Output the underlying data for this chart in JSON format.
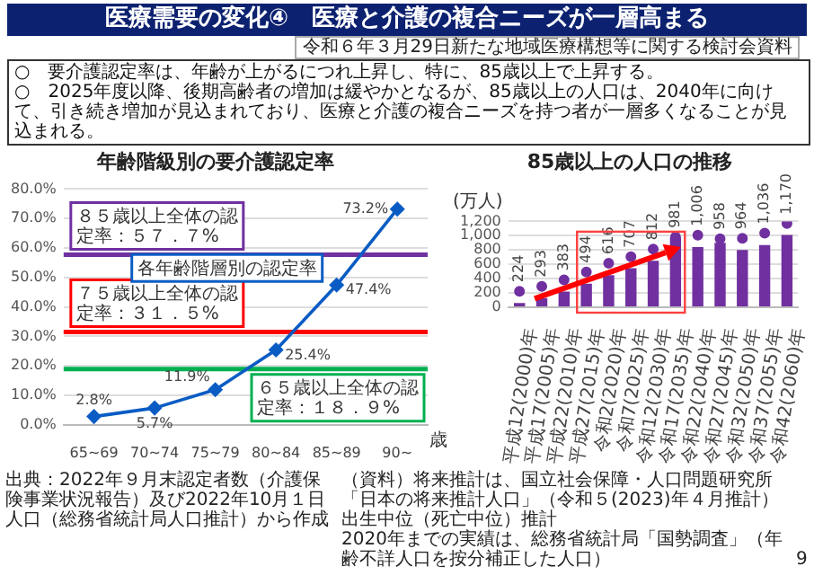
{
  "chart_data": [
    {
      "type": "other",
      "title": "医療需要の変化④　医療と介護の複合ニーズが一層高まる",
      "subtitle": "令和６年３月29日新たな地域医療構想等に関する検討会資料",
      "annotations": [
        "○　要介護認定率は、年齢が上がるにつれ上昇し、特に、85歳以上で上昇する。",
        "○　2025年度以降、後期高齢者の増加は緩やかとなるが、85歳以上の人口は、2040年に向けて、引き続き増加が見込まれており、医療と介護の複合ニーズを持つ者が一層多くなることが見込まれる。"
      ]
    },
    {
      "type": "line",
      "title": "年齢階級別の要介護認定率",
      "xlabel": "歳",
      "categories": [
        "65~69",
        "70~74",
        "75~79",
        "80~84",
        "85~89",
        "90~"
      ],
      "series": [
        {
          "color": "#0a5cc4",
          "values": [
            2.8,
            5.7,
            11.9,
            25.4,
            47.4,
            73.2
          ],
          "value_labels": [
            "2.8%",
            "5.7%",
            "11.9%",
            "25.4%",
            "47.4%",
            "73.2%"
          ]
        }
      ],
      "ylim": [
        0,
        80
      ],
      "yticks": [
        {
          "value": 0,
          "label": "0.0%"
        },
        {
          "value": 10,
          "label": "10.0%"
        },
        {
          "value": 20,
          "label": "20.0%"
        },
        {
          "value": 30,
          "label": "30.0%"
        },
        {
          "value": 40,
          "label": "40.0%"
        },
        {
          "value": 50,
          "label": "50.0%"
        },
        {
          "value": 60,
          "label": "60.0%"
        },
        {
          "value": 70,
          "label": "70.0%"
        },
        {
          "value": 80,
          "label": "80.0%"
        }
      ],
      "grid": "y",
      "marker": "diamond",
      "ref_lines": [
        {
          "axis": "y",
          "value": 57.7,
          "label": "８５歳以上全体の認定率：５７．７%",
          "color": "#7030a0"
        },
        {
          "axis": "y",
          "value": 31.5,
          "label": "７５歳以上全体の認定率：３１．５%",
          "color": "#ff0000"
        },
        {
          "axis": "y",
          "value": 18.9,
          "label": "６５歳以上全体の認定率：１８．９%",
          "color": "#00b050"
        }
      ],
      "annotations": [
        {
          "text": "各年齢階層別の認定率",
          "x": "85~89",
          "y": 47.4
        },
        "出典：2022年９月末認定者数（介護保険事業状況報告）及び2022年10月１日人口（総務省統計局人口推計）から作成",
        "9"
      ]
    },
    {
      "type": "bar",
      "title": "85歳以上の人口の推移",
      "ylabel": "(万人)",
      "categories": [
        "平成12(2000)年",
        "平成17(2005)年",
        "平成22(2010)年",
        "平成27(2015)年",
        "令和2(2020)年",
        "令和7(2025)年",
        "令和12(2030)年",
        "令和17(2035)年",
        "令和22(2040)年",
        "令和27(2045)年",
        "令和32(2050)年",
        "令和37(2055)年",
        "令和42(2060)年"
      ],
      "marker": "circle",
      "series": [
        {
          "type": "bar",
          "color": "#7030a0",
          "values": [
            60,
            130,
            220,
            330,
            450,
            545,
            650,
            975,
            840,
            900,
            800,
            870,
            1010
          ]
        },
        {
          "type": "scatter",
          "color": "#7030a0",
          "values": [
            224,
            293,
            383,
            494,
            616,
            707,
            812,
            981,
            1006,
            958,
            964,
            1036,
            1170
          ],
          "value_labels": [
            "224",
            "293",
            "383",
            "494",
            "616",
            "707",
            "812",
            "981",
            "1,006",
            "958",
            "964",
            "1,036",
            "1,170"
          ]
        }
      ],
      "ylim": [
        0,
        1200
      ],
      "yticks": [
        0,
        200,
        400,
        600,
        800,
        {
          "value": 1000,
          "label": "1,000"
        },
        {
          "value": 1200,
          "label": "1,200"
        }
      ],
      "grid": "y",
      "annotations": [
        "（資料）将来推計は、国立社会保障・人口問題研究所「日本の将来推計人口」（令和５(2023)年４月推計）出生中位（死亡中位）推計",
        "2020年までの実績は、総務省統計局「国勢調査」（年齢不詳人口を按分補正した人口）"
      ]
    }
  ]
}
